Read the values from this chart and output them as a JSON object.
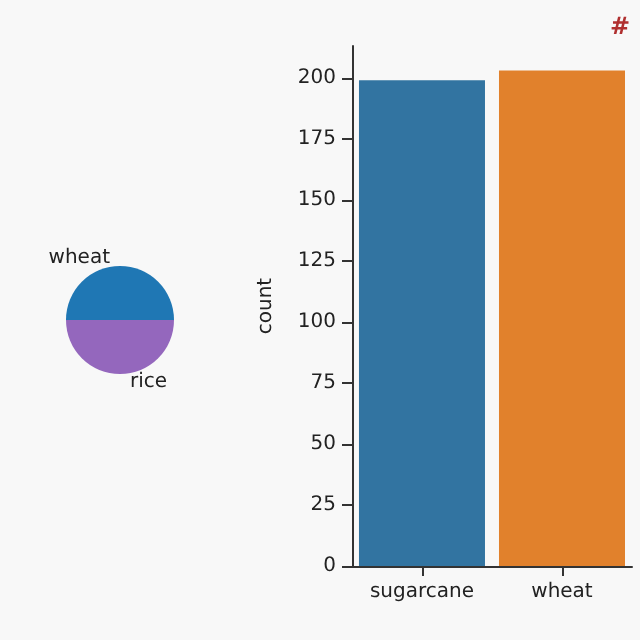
{
  "chart_data": [
    {
      "type": "pie",
      "categories": [
        "wheat",
        "rice"
      ],
      "values": [
        50,
        50
      ],
      "colors": [
        "#1f77b4",
        "#9467bd"
      ]
    },
    {
      "type": "bar",
      "title": "#",
      "ylabel": "count",
      "categories": [
        "sugarcane",
        "wheat"
      ],
      "colors": [
        "#3274a1",
        "#e1812c"
      ],
      "values": [
        199,
        203
      ],
      "ylim": [
        0,
        213
      ],
      "yticks": [
        0,
        25,
        50,
        75,
        100,
        125,
        150,
        175,
        200
      ],
      "grid": false
    }
  ]
}
